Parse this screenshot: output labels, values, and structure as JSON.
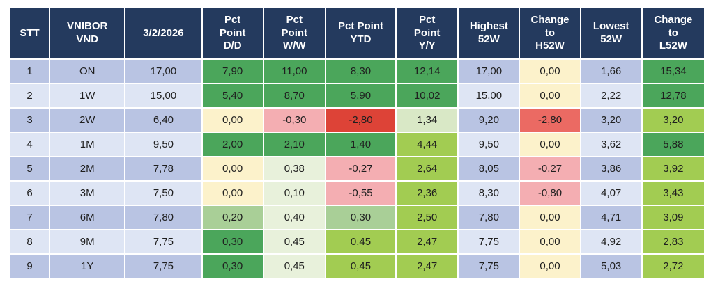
{
  "chart_data": {
    "type": "table",
    "title": "",
    "columns": [
      "STT",
      "VNIBOR\nVND",
      "3/2/2026",
      "Pct\nPoint\nD/D",
      "Pct\nPoint\nW/W",
      "Pct Point\nYTD",
      "Pct\nPoint\nY/Y",
      "Highest\n52W",
      "Change\nto\nH52W",
      "Lowest\n52W",
      "Change\nto\nL52W"
    ],
    "rows": [
      [
        "1",
        "ON",
        "17,00",
        "7,90",
        "11,00",
        "8,30",
        "12,14",
        "17,00",
        "0,00",
        "1,66",
        "15,34"
      ],
      [
        "2",
        "1W",
        "15,00",
        "5,40",
        "8,70",
        "5,90",
        "10,02",
        "15,00",
        "0,00",
        "2,22",
        "12,78"
      ],
      [
        "3",
        "2W",
        "6,40",
        "0,00",
        "-0,30",
        "-2,80",
        "1,34",
        "9,20",
        "-2,80",
        "3,20",
        "3,20"
      ],
      [
        "4",
        "1M",
        "9,50",
        "2,00",
        "2,10",
        "1,40",
        "4,44",
        "9,50",
        "0,00",
        "3,62",
        "5,88"
      ],
      [
        "5",
        "2M",
        "7,78",
        "0,00",
        "0,38",
        "-0,27",
        "2,64",
        "8,05",
        "-0,27",
        "3,86",
        "3,92"
      ],
      [
        "6",
        "3M",
        "7,50",
        "0,00",
        "0,10",
        "-0,55",
        "2,36",
        "8,30",
        "-0,80",
        "4,07",
        "3,43"
      ],
      [
        "7",
        "6M",
        "7,80",
        "0,20",
        "0,40",
        "0,30",
        "2,50",
        "7,80",
        "0,00",
        "4,71",
        "3,09"
      ],
      [
        "8",
        "9M",
        "7,75",
        "0,30",
        "0,45",
        "0,45",
        "2,47",
        "7,75",
        "0,00",
        "4,92",
        "2,83"
      ],
      [
        "9",
        "1Y",
        "7,75",
        "0,30",
        "0,45",
        "0,45",
        "2,47",
        "7,75",
        "0,00",
        "5,03",
        "2,72"
      ]
    ]
  },
  "formatting": {
    "palette": {
      "header_bg": "#243A5E",
      "header_text": "#FFFFFF",
      "row_odd_bg": "#B9C4E3",
      "row_even_bg": "#DEE5F4",
      "strong_green": "#4BA65B",
      "yellow_green": "#A2CC52",
      "pale_green": "#E8F1DB",
      "pale_green_2": "#D9E8C6",
      "muted_green": "#A9CF97",
      "cream": "#FCF2CB",
      "pink": "#F4AEB2",
      "medium_red": "#EB6A63",
      "strong_red": "#DD4337",
      "grid": "#FFFFFF",
      "cell_text": "#1F1F1F"
    },
    "cell_colors": [
      [
        null,
        null,
        null,
        "strong_green",
        "strong_green",
        "strong_green",
        "strong_green",
        null,
        "cream",
        null,
        "strong_green"
      ],
      [
        null,
        null,
        null,
        "strong_green",
        "strong_green",
        "strong_green",
        "strong_green",
        null,
        "cream",
        null,
        "strong_green"
      ],
      [
        null,
        null,
        null,
        "cream",
        "pink",
        "strong_red",
        "pale_green_2",
        null,
        "medium_red",
        null,
        "yellow_green"
      ],
      [
        null,
        null,
        null,
        "strong_green",
        "strong_green",
        "strong_green",
        "yellow_green",
        null,
        "cream",
        null,
        "strong_green"
      ],
      [
        null,
        null,
        null,
        "cream",
        "pale_green",
        "pink",
        "yellow_green",
        null,
        "pink",
        null,
        "yellow_green"
      ],
      [
        null,
        null,
        null,
        "cream",
        "pale_green",
        "pink",
        "yellow_green",
        null,
        "pink",
        null,
        "yellow_green"
      ],
      [
        null,
        null,
        null,
        "muted_green",
        "pale_green",
        "muted_green",
        "yellow_green",
        null,
        "cream",
        null,
        "yellow_green"
      ],
      [
        null,
        null,
        null,
        "strong_green",
        "pale_green",
        "yellow_green",
        "yellow_green",
        null,
        "cream",
        null,
        "yellow_green"
      ],
      [
        null,
        null,
        null,
        "strong_green",
        "pale_green",
        "yellow_green",
        "yellow_green",
        null,
        "cream",
        null,
        "yellow_green"
      ]
    ]
  }
}
